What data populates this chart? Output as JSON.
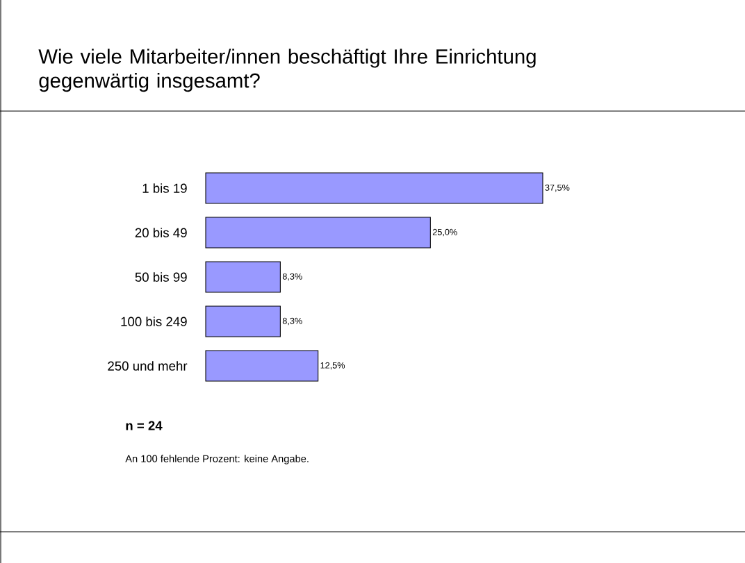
{
  "chart_data": {
    "type": "bar",
    "orientation": "horizontal",
    "title": "Wie viele Mitarbeiter/innen beschäftigt Ihre Einrichtung gegenwärtig insgesamt?",
    "categories": [
      "1 bis 19",
      "20 bis 49",
      "50 bis 99",
      "100 bis 249",
      "250 und mehr"
    ],
    "values": [
      37.5,
      25.0,
      8.3,
      8.3,
      12.5
    ],
    "value_labels": [
      "37,5%",
      "25,0%",
      "8,3%",
      "8,3%",
      "12,5%"
    ],
    "color": "#9999ff",
    "annotations": [
      "n = 24",
      "An 100 fehlende Prozent: keine Angabe."
    ]
  }
}
